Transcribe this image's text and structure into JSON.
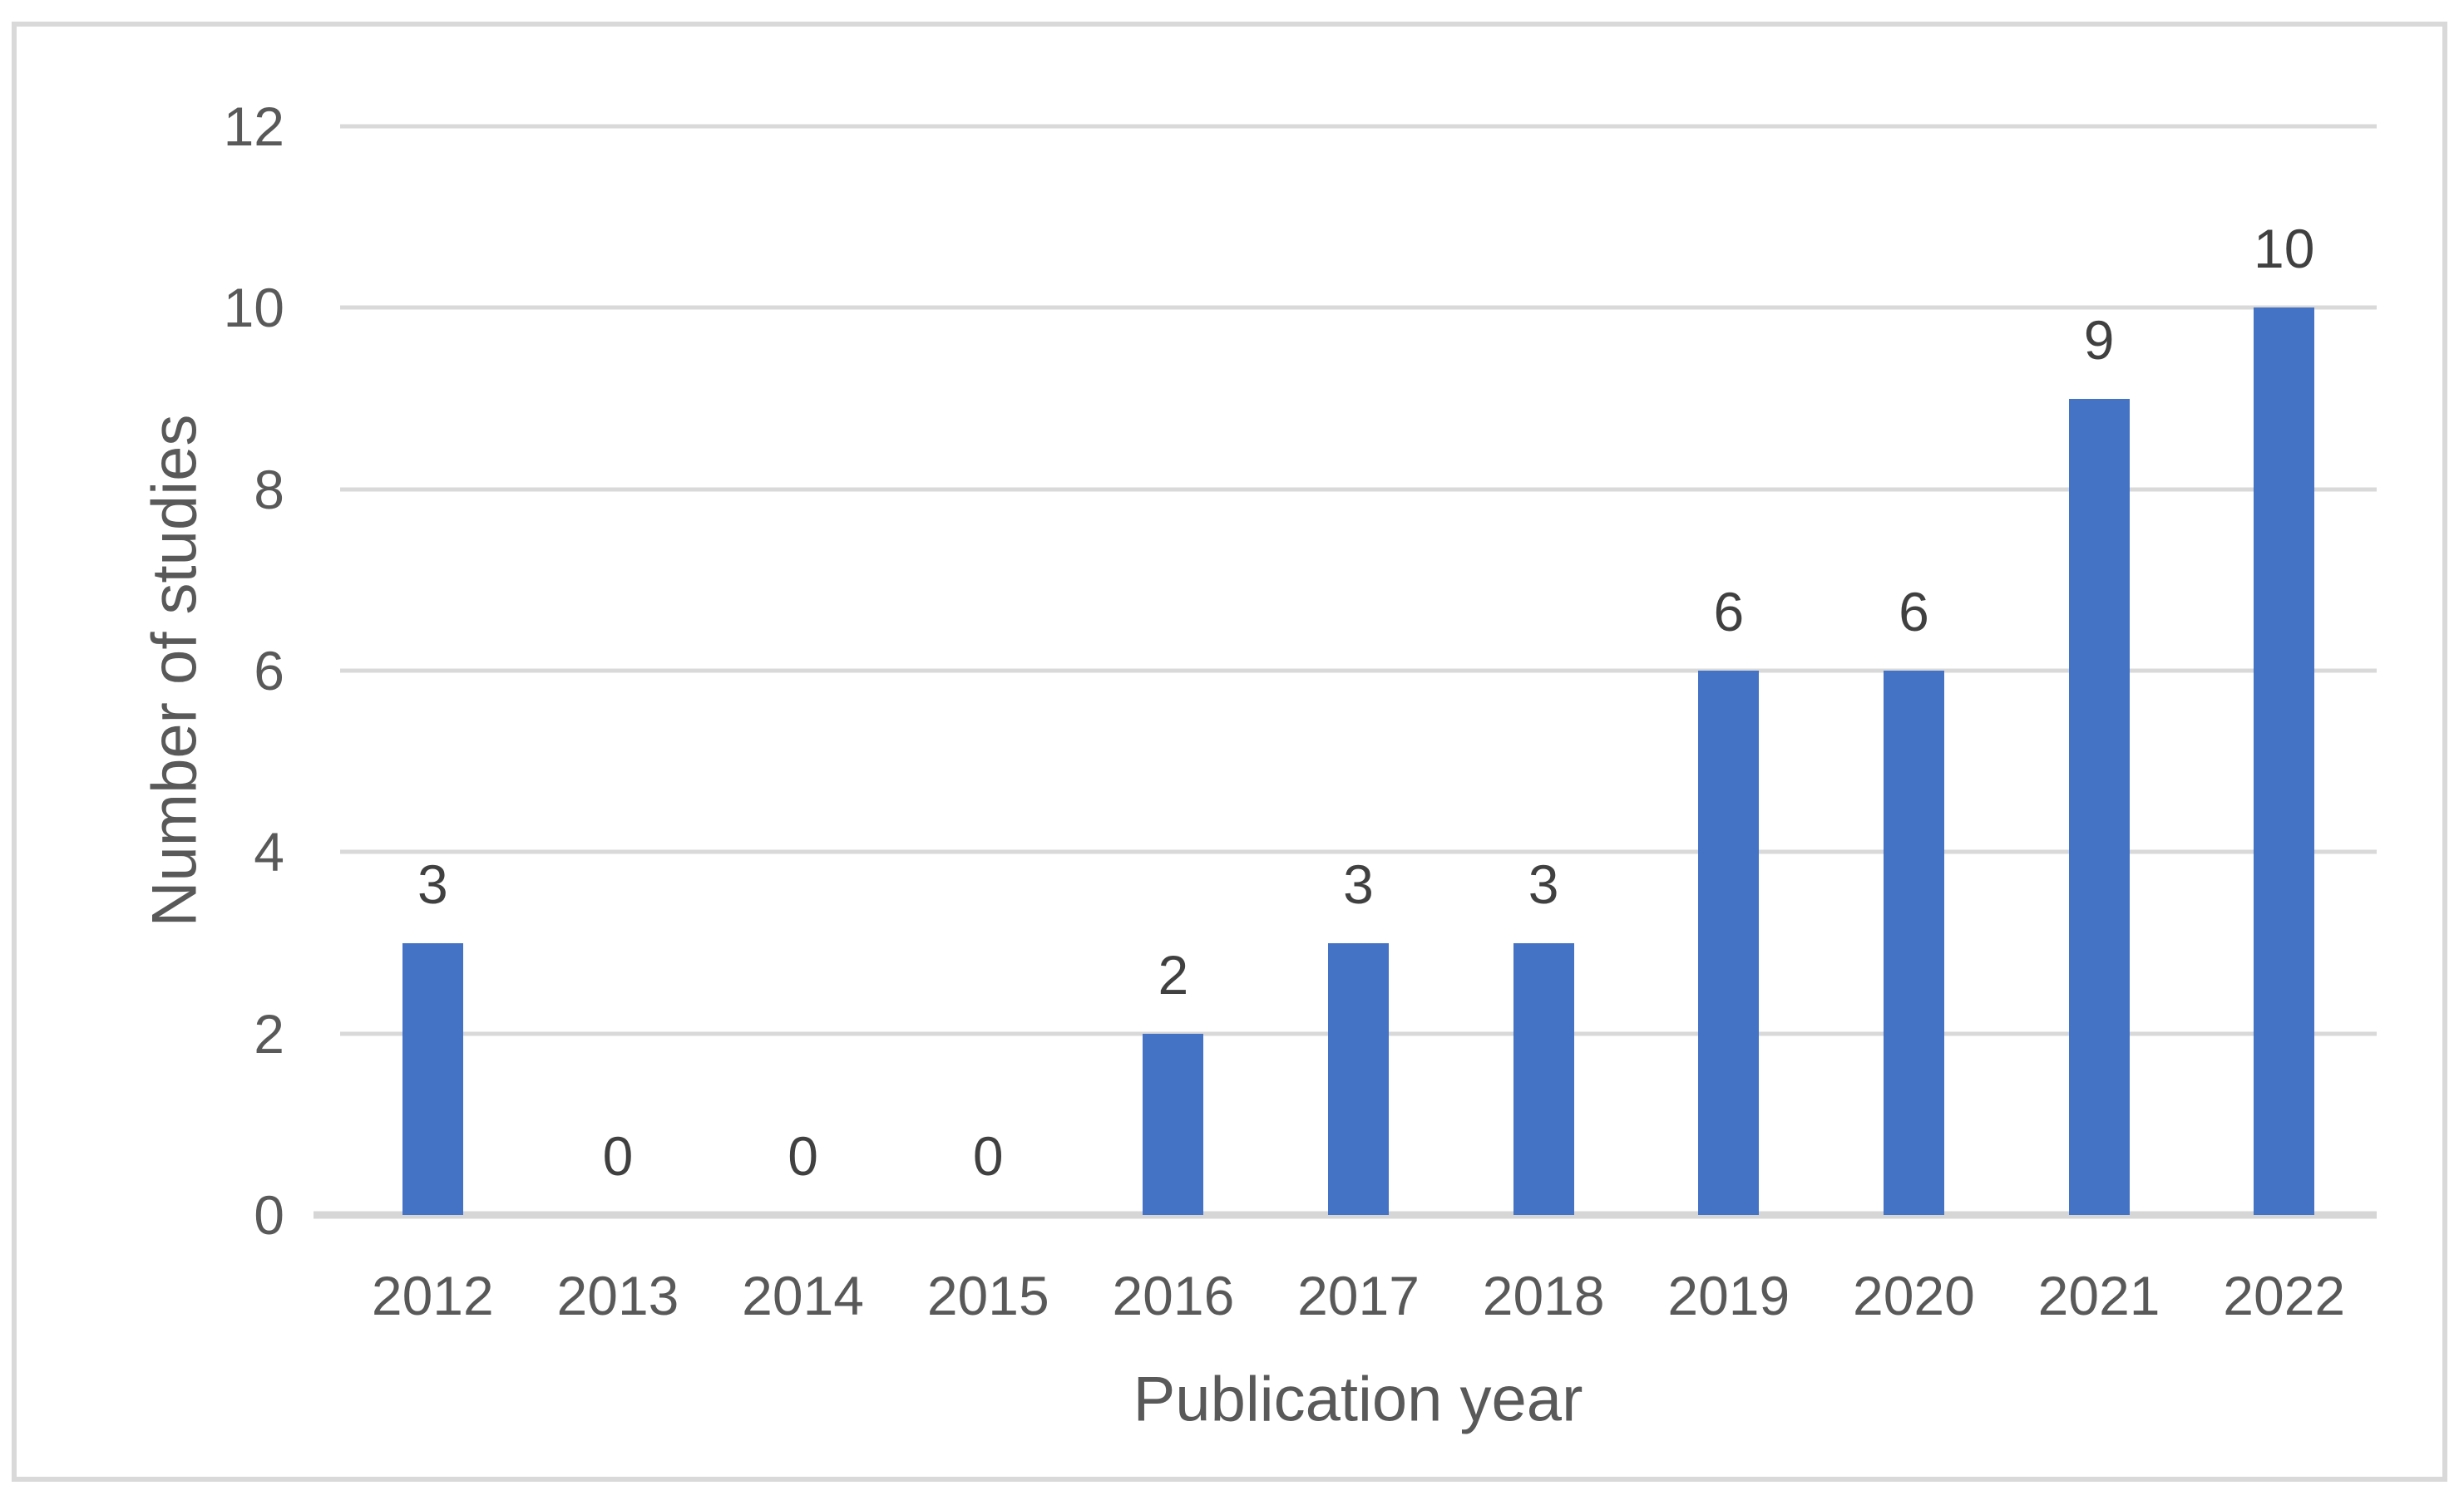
{
  "chart_data": {
    "type": "bar",
    "categories": [
      "2012",
      "2013",
      "2014",
      "2015",
      "2016",
      "2017",
      "2018",
      "2019",
      "2020",
      "2021",
      "2022"
    ],
    "values": [
      3,
      0,
      0,
      0,
      2,
      3,
      3,
      6,
      6,
      9,
      10
    ],
    "data_labels": [
      "3",
      "0",
      "0",
      "0",
      "2",
      "3",
      "3",
      "6",
      "6",
      "9",
      "10"
    ],
    "title": "",
    "xlabel": "Publication year",
    "ylabel": "Number of studies",
    "ylim": [
      0,
      12
    ],
    "y_ticks": [
      0,
      2,
      4,
      6,
      8,
      10,
      12
    ],
    "grid": "horizontal-on",
    "legend": "none",
    "colors": {
      "bar": "#4472C4",
      "data_label": "#404040",
      "tick_label": "#595959",
      "axis_title": "#595959",
      "gridline": "#D9D9D9",
      "axis_line": "#D6D6D6",
      "frame_border": "#D9D9D9",
      "background": "#FFFFFF"
    }
  }
}
